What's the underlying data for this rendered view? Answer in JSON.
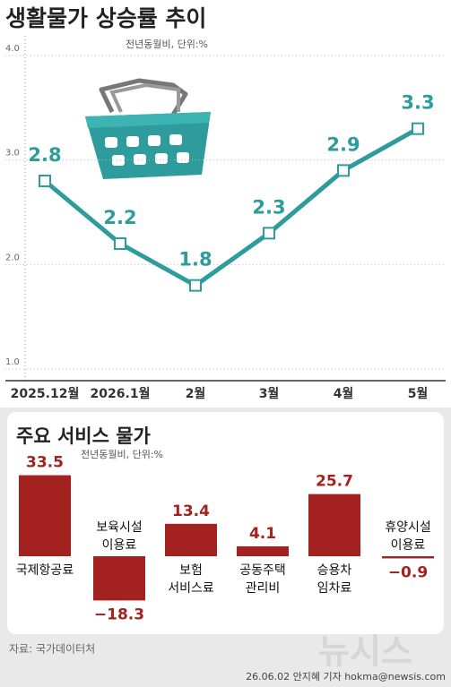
{
  "chart_data": [
    {
      "type": "line",
      "title": "생활물가 상승률 추이",
      "subtitle": "전년동월비, 단위:%",
      "categories": [
        "2025.12월",
        "2026.1월",
        "2월",
        "3월",
        "4월",
        "5월"
      ],
      "values": [
        2.8,
        2.2,
        1.8,
        2.3,
        2.9,
        3.3
      ],
      "color": "#2e9c9c",
      "ylim": [
        1,
        4
      ],
      "yticks": [
        {
          "value": 1,
          "label": "1.0"
        },
        {
          "value": 2,
          "label": "2.0"
        },
        {
          "value": 3,
          "label": "3.0"
        },
        {
          "value": 4,
          "label": "4.0"
        }
      ],
      "grid": true
    },
    {
      "type": "bar",
      "title": "주요 서비스 물가",
      "subtitle": "전년동월비, 단위:%",
      "categories": [
        [
          "국제항공료"
        ],
        [
          "보육시설",
          "이용료"
        ],
        [
          "보험",
          "서비스료"
        ],
        [
          "공동주택",
          "관리비"
        ],
        [
          "승용차",
          "임차료"
        ],
        [
          "휴양시설",
          "이용료"
        ]
      ],
      "values": [
        33.5,
        -18.3,
        13.4,
        4.1,
        25.7,
        -0.9
      ],
      "value_labels": [
        "33.5",
        "−18.3",
        "13.4",
        "4.1",
        "25.7",
        "−0.9"
      ],
      "color": "#a3211f"
    }
  ],
  "source": "자료: 국가데이터처",
  "byline": "26.06.02 안지혜 기자 hokma@newsis.com",
  "watermark": "뉴시스"
}
